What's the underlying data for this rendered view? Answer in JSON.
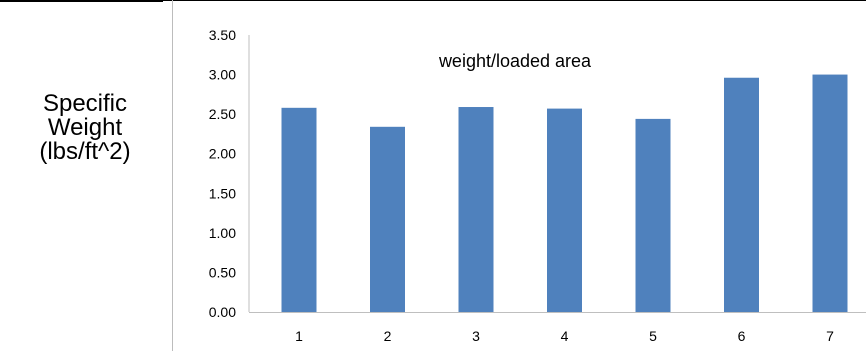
{
  "row_label": {
    "line1": "Specific",
    "line2": "Weight",
    "line3": "(lbs/ft^2)"
  },
  "chart_data": {
    "type": "bar",
    "title": "weight/loaded area",
    "xlabel": "",
    "ylabel": "",
    "categories": [
      "1",
      "2",
      "3",
      "4",
      "5",
      "6",
      "7"
    ],
    "series": [
      {
        "values": [
          2.58,
          2.34,
          2.59,
          2.57,
          2.44,
          2.96,
          3.0
        ]
      }
    ],
    "ylim": [
      0,
      3.5
    ],
    "yticks": [
      "0.00",
      "0.50",
      "1.00",
      "1.50",
      "2.00",
      "2.50",
      "3.00",
      "3.50"
    ],
    "grid": false,
    "legend": "none",
    "bar_color": "#4f81bd"
  }
}
